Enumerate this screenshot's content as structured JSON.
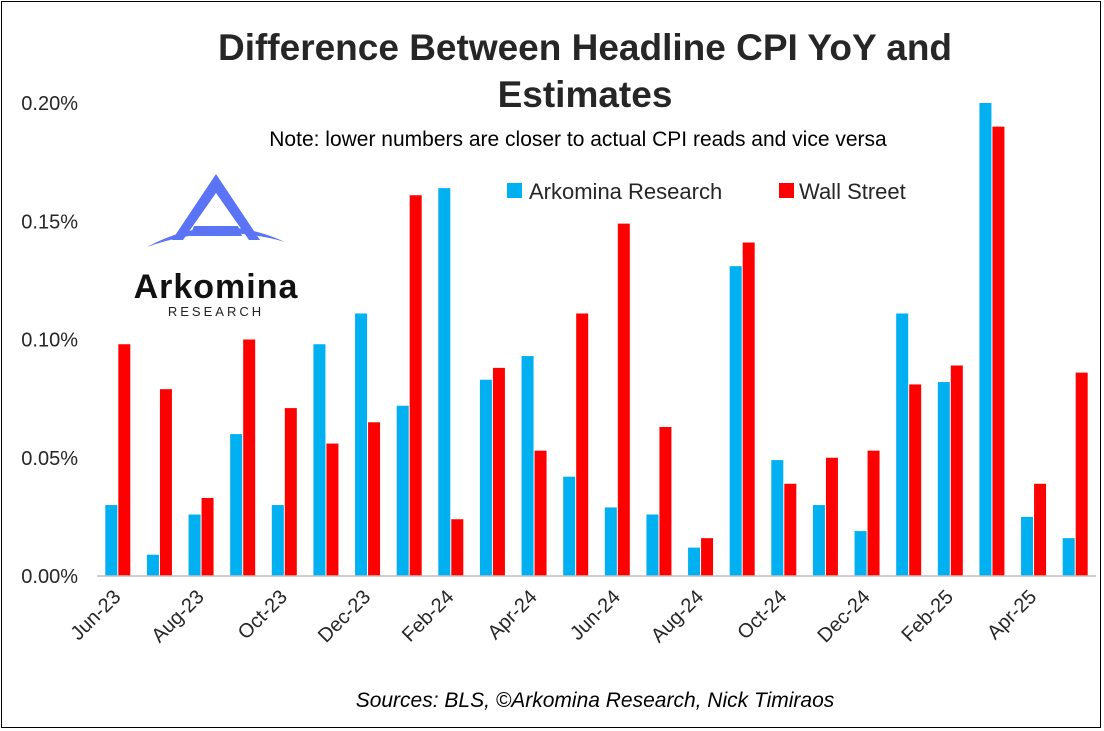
{
  "chart_data": {
    "type": "bar",
    "title_line1": "Difference Between Headline CPI YoY and",
    "title_line2": "Estimates",
    "subtitle": "Note: lower numbers are closer to actual CPI reads and vice versa",
    "source": "Sources: BLS, ©Arkomina Research, Nick Timiraos",
    "categories": [
      "Jun-23",
      "Jul-23",
      "Aug-23",
      "Sep-23",
      "Oct-23",
      "Nov-23",
      "Dec-23",
      "Jan-24",
      "Feb-24",
      "Mar-24",
      "Apr-24",
      "May-24",
      "Jun-24",
      "Jul-24",
      "Aug-24",
      "Sep-24",
      "Oct-24",
      "Nov-24",
      "Dec-24",
      "Jan-25",
      "Feb-25",
      "Mar-25",
      "Apr-25",
      "May-25"
    ],
    "x_tick_labels": [
      "Jun-23",
      "Aug-23",
      "Oct-23",
      "Dec-23",
      "Feb-24",
      "Apr-24",
      "Jun-24",
      "Aug-24",
      "Oct-24",
      "Dec-24",
      "Feb-25",
      "Apr-25"
    ],
    "y_ticks": [
      0,
      0.05,
      0.1,
      0.15,
      0.2
    ],
    "y_tick_labels": [
      "0.00%",
      "0.05%",
      "0.10%",
      "0.15%",
      "0.20%"
    ],
    "ylim": [
      0,
      0.2
    ],
    "series": [
      {
        "name": "Arkomina Research",
        "color": "#00B0F0",
        "values": [
          0.03,
          0.009,
          0.026,
          0.06,
          0.03,
          0.098,
          0.111,
          0.072,
          0.164,
          0.083,
          0.093,
          0.042,
          0.029,
          0.026,
          0.012,
          0.131,
          0.049,
          0.03,
          0.019,
          0.111,
          0.082,
          0.2,
          0.025,
          0.016
        ]
      },
      {
        "name": "Wall Street",
        "color": "#FF0000",
        "values": [
          0.098,
          0.079,
          0.033,
          0.1,
          0.071,
          0.056,
          0.065,
          0.161,
          0.024,
          0.088,
          0.053,
          0.111,
          0.149,
          0.063,
          0.016,
          0.141,
          0.039,
          0.05,
          0.053,
          0.081,
          0.089,
          0.19,
          0.039,
          0.086
        ]
      }
    ],
    "grid": false,
    "legend_position": "top-right"
  },
  "logo": {
    "name": "Arkomina",
    "subtitle": "RESEARCH",
    "color": "#5B74F5"
  }
}
